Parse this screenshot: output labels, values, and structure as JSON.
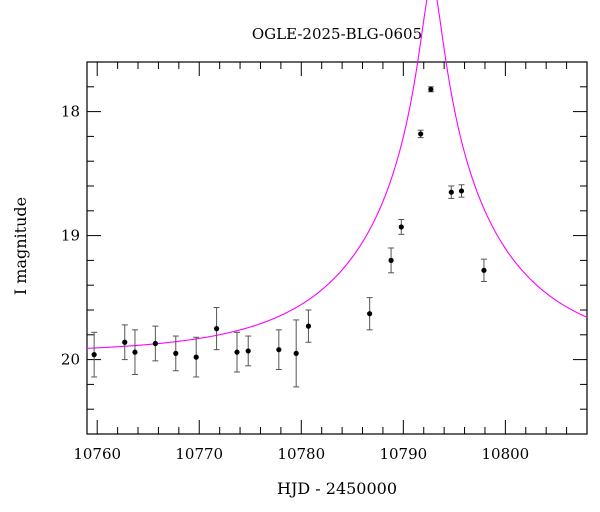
{
  "chart_data": {
    "type": "scatter",
    "title": "OGLE-2025-BLG-0605",
    "xlabel": "HJD - 2450000",
    "ylabel": "I magnitude",
    "xlim": [
      10759,
      10808
    ],
    "ylim": [
      20.6,
      17.6
    ],
    "y_inverted": true,
    "grid": false,
    "x_ticks": [
      10760,
      10770,
      10780,
      10790,
      10800
    ],
    "y_ticks": [
      18,
      19,
      20
    ],
    "x_minor_step": 2,
    "y_minor_step": 0.2,
    "colors": {
      "model": "#ff00ff",
      "points": "#000000",
      "axes": "#000000"
    },
    "series": [
      {
        "type": "errorbar",
        "x": [
          10759.7,
          10762.7,
          10763.7,
          10765.7,
          10767.7,
          10769.7,
          10771.7,
          10773.7,
          10774.8,
          10777.8,
          10779.5,
          10780.7,
          10786.7,
          10788.8,
          10789.8,
          10791.7,
          10792.7,
          10794.7,
          10795.7,
          10797.9
        ],
        "y": [
          19.96,
          19.86,
          19.94,
          19.87,
          19.95,
          19.98,
          19.75,
          19.94,
          19.93,
          19.92,
          19.95,
          19.73,
          19.63,
          19.2,
          18.93,
          18.18,
          17.82,
          18.65,
          18.64,
          19.28
        ],
        "yerr": [
          0.18,
          0.14,
          0.18,
          0.14,
          0.14,
          0.16,
          0.17,
          0.16,
          0.12,
          0.16,
          0.27,
          0.13,
          0.13,
          0.1,
          0.06,
          0.03,
          0.02,
          0.05,
          0.05,
          0.09
        ]
      },
      {
        "type": "line",
        "model": "pspl",
        "t0": 10792.8,
        "tE": 14.5,
        "u0": 0.064,
        "mag_base": 19.95,
        "blend_fraction": 1.0,
        "x_range": [
          10759,
          10808
        ]
      }
    ]
  }
}
